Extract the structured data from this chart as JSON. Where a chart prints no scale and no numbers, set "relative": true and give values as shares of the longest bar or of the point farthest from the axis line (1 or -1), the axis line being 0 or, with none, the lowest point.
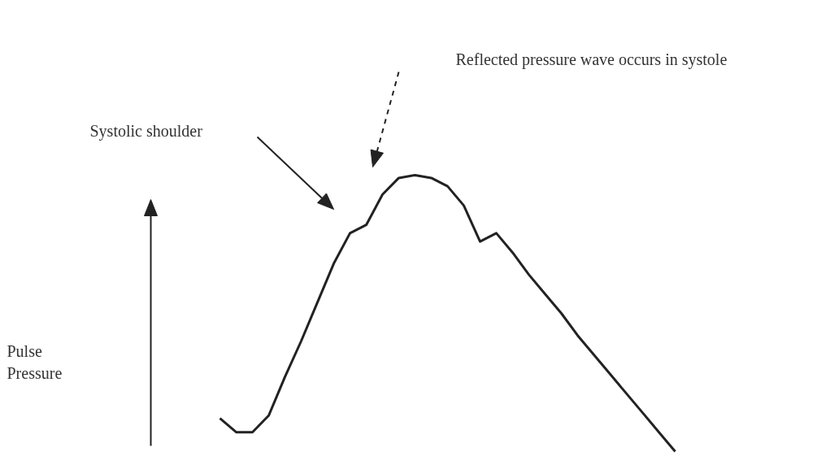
{
  "chart_data": {
    "type": "line",
    "relative": true,
    "color": "#222222",
    "annotations": [
      "Reflected pressure wave occurs in systole",
      "Systolic shoulder",
      "Pulse Pressure"
    ],
    "categories": [
      null,
      null,
      null,
      null,
      null,
      null,
      null,
      null,
      null,
      null,
      null,
      null,
      null,
      null,
      null,
      null,
      null,
      null,
      null,
      null,
      null,
      null,
      null,
      null,
      null,
      null,
      null,
      null,
      null
    ],
    "values": [
      0.12,
      0.07,
      0.07,
      0.13,
      0.27,
      0.4,
      0.54,
      0.68,
      0.79,
      0.82,
      0.93,
      0.99,
      1.0,
      0.99,
      0.96,
      0.89,
      0.76,
      0.79,
      0.72,
      0.64,
      0.57,
      0.5,
      0.42,
      0.35,
      0.28,
      0.21,
      0.14,
      0.07,
      0.0
    ]
  }
}
